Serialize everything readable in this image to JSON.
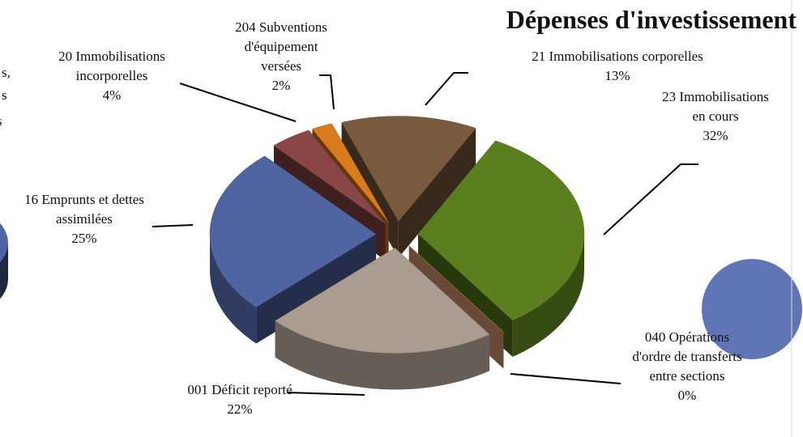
{
  "chart_data": {
    "type": "pie",
    "title": "Dépenses d'investissement",
    "categories": [
      "21 Immobilisations corporelles",
      "23 Immobilisations en cours",
      "040 Opérations d'ordre de transferts entre sections",
      "001 Déficit reporté",
      "16 Emprunts et dettes assimilées",
      "20 Immobilisations incorporelles",
      "204 Subventions d'équipement versées"
    ],
    "values": [
      13,
      32,
      0,
      22,
      25,
      4,
      2
    ],
    "value_labels": [
      "13%",
      "32%",
      "0%",
      "22%",
      "25%",
      "4%",
      "2%"
    ],
    "colors": [
      "#7a5a3c",
      "#5b7f1f",
      "#e8a07a",
      "#aa9d90",
      "#5064a2",
      "#8a4646",
      "#d87b1c"
    ],
    "annotations": [
      "s,",
      "s",
      "s"
    ]
  }
}
